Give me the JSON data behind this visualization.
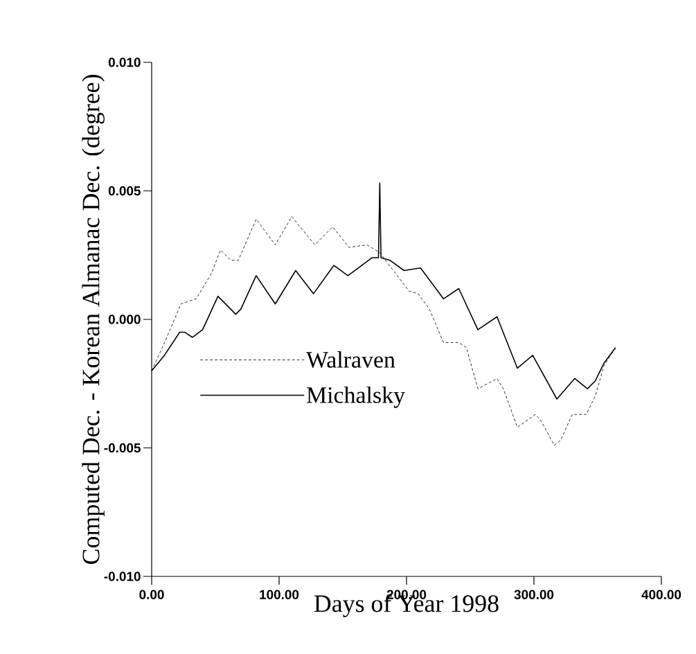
{
  "chart_data": {
    "type": "line",
    "xlabel": "Days of Year 1998",
    "ylabel": "Computed Dec. - Korean Almanac Dec. (degree)",
    "xlim": [
      0,
      400
    ],
    "ylim": [
      -0.01,
      0.01
    ],
    "xticks": [
      {
        "value": 0,
        "label": "0.00"
      },
      {
        "value": 100,
        "label": "100.00"
      },
      {
        "value": 200,
        "label": "200.00"
      },
      {
        "value": 300,
        "label": "300.00"
      },
      {
        "value": 400,
        "label": "400.00"
      }
    ],
    "yticks": [
      {
        "value": -0.01,
        "label": "-0.010"
      },
      -0.005,
      {
        "value": 0,
        "label": "0.000"
      },
      0.005,
      {
        "value": 0.01,
        "label": "0.010"
      }
    ],
    "grid": false,
    "legend": "bottom left",
    "series": [
      {
        "name": "Walraven",
        "color": "#000000",
        "line_style": "dashed",
        "x": [
          0,
          11,
          23,
          35,
          47,
          54,
          62,
          68,
          82,
          97,
          110,
          128,
          142,
          155,
          169,
          179,
          185,
          202,
          209,
          218,
          229,
          241,
          247,
          256,
          271,
          276,
          287,
          301,
          305,
          316,
          321,
          330,
          341,
          348,
          355,
          364
        ],
        "values": [
          -0.002,
          -0.0008,
          0.0006,
          0.0008,
          0.0018,
          0.0027,
          0.0023,
          0.0023,
          0.0039,
          0.0029,
          0.004,
          0.0029,
          0.0036,
          0.0028,
          0.0029,
          0.0026,
          0.0022,
          0.0011,
          0.001,
          0.0004,
          -0.0009,
          -0.0009,
          -0.0011,
          -0.0027,
          -0.0023,
          -0.0027,
          -0.0042,
          -0.0037,
          -0.0039,
          -0.0049,
          -0.0047,
          -0.0037,
          -0.0037,
          -0.003,
          -0.0018,
          -0.0011
        ]
      },
      {
        "name": "Michalsky",
        "color": "#000000",
        "line_style": "solid",
        "x": [
          0,
          10,
          22,
          26,
          32,
          40,
          52,
          66,
          70,
          82,
          97,
          113,
          127,
          143,
          154,
          173,
          178,
          179,
          180,
          187,
          198,
          211,
          229,
          241,
          256,
          271,
          287,
          299,
          318,
          332,
          342,
          348,
          355,
          364
        ],
        "values": [
          -0.002,
          -0.0014,
          -0.0005,
          -0.0005,
          -0.0007,
          -0.0004,
          0.0009,
          0.0002,
          0.0004,
          0.0017,
          0.0006,
          0.0019,
          0.001,
          0.0021,
          0.0017,
          0.0024,
          0.0024,
          0.0053,
          0.0024,
          0.0023,
          0.0019,
          0.002,
          0.0008,
          0.0012,
          -0.0004,
          0.0001,
          -0.0019,
          -0.0014,
          -0.0031,
          -0.0023,
          -0.0027,
          -0.0024,
          -0.0017,
          -0.0011
        ]
      }
    ]
  }
}
